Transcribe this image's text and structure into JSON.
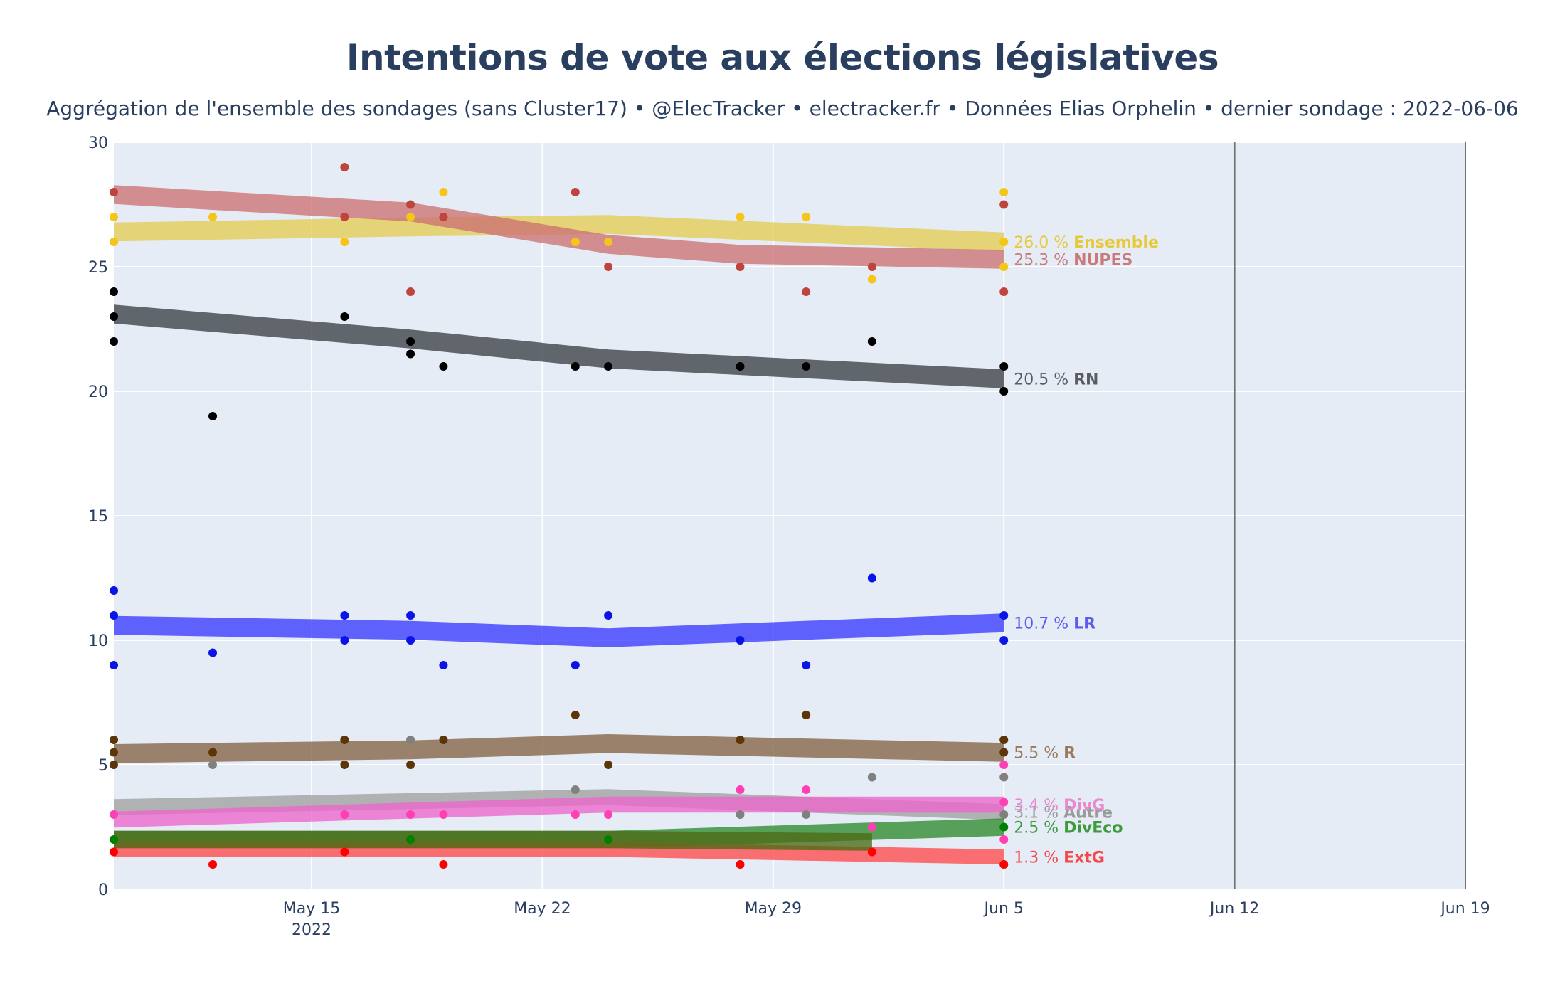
{
  "title": "Intentions de vote aux élections législatives",
  "subtitle": "Aggrégation de l'ensemble des sondages (sans Cluster17) • @ElecTracker • electracker.fr • Données Elias Orphelin • dernier sondage : 2022-06-06",
  "chart_data": {
    "type": "line",
    "x_axis": {
      "range": [
        "2022-05-10",
        "2022-06-20"
      ],
      "ticks": [
        {
          "date": "2022-05-16",
          "label": "May 15",
          "sublabel": "2022"
        },
        {
          "date": "2022-05-23",
          "label": "May 22"
        },
        {
          "date": "2022-05-30",
          "label": "May 29"
        },
        {
          "date": "2022-06-06",
          "label": "Jun 5"
        },
        {
          "date": "2022-06-13",
          "label": "Jun 12"
        },
        {
          "date": "2022-06-20",
          "label": "Jun 19"
        }
      ]
    },
    "y_axis": {
      "range": [
        0,
        30
      ],
      "ticks": [
        0,
        5,
        10,
        15,
        20,
        25,
        30
      ]
    },
    "grid": true,
    "vertical_markers": [
      "2022-06-13",
      "2022-06-20"
    ],
    "end_date": "2022-06-06",
    "series": [
      {
        "name": "Ensemble",
        "value_label": "26.0 %",
        "color": "#e8c93a",
        "band_color": "#e6cc55",
        "point_color": "#f5c518",
        "trend": [
          [
            "2022-05-10",
            26.4
          ],
          [
            "2022-05-19",
            26.6
          ],
          [
            "2022-05-25",
            26.7
          ],
          [
            "2022-06-06",
            26.0
          ]
        ],
        "half_width": 0.38,
        "points": [
          [
            "2022-05-10",
            27
          ],
          [
            "2022-05-10",
            26
          ],
          [
            "2022-05-13",
            27
          ],
          [
            "2022-05-17",
            26
          ],
          [
            "2022-05-19",
            27
          ],
          [
            "2022-05-20",
            28
          ],
          [
            "2022-05-24",
            26
          ],
          [
            "2022-05-25",
            26
          ],
          [
            "2022-05-29",
            27
          ],
          [
            "2022-05-31",
            27
          ],
          [
            "2022-06-02",
            24.5
          ],
          [
            "2022-06-06",
            28
          ],
          [
            "2022-06-06",
            26
          ],
          [
            "2022-06-06",
            25
          ]
        ]
      },
      {
        "name": "NUPES",
        "value_label": "25.3 %",
        "color": "#c97a7a",
        "band_color": "#cc7272",
        "point_color": "#c0443e",
        "trend": [
          [
            "2022-05-10",
            27.9
          ],
          [
            "2022-05-19",
            27.2
          ],
          [
            "2022-05-25",
            25.9
          ],
          [
            "2022-05-29",
            25.5
          ],
          [
            "2022-06-06",
            25.3
          ]
        ],
        "half_width": 0.38,
        "points": [
          [
            "2022-05-10",
            28
          ],
          [
            "2022-05-17",
            29
          ],
          [
            "2022-05-17",
            27
          ],
          [
            "2022-05-19",
            27.5
          ],
          [
            "2022-05-19",
            24
          ],
          [
            "2022-05-20",
            27
          ],
          [
            "2022-05-24",
            28
          ],
          [
            "2022-05-25",
            25
          ],
          [
            "2022-05-29",
            25
          ],
          [
            "2022-05-31",
            24
          ],
          [
            "2022-06-02",
            25
          ],
          [
            "2022-06-06",
            27.5
          ],
          [
            "2022-06-06",
            24
          ]
        ]
      },
      {
        "name": "RN",
        "value_label": "20.5 %",
        "color": "#5a5c62",
        "band_color": "#3c3f45",
        "point_color": "#000000",
        "trend": [
          [
            "2022-05-10",
            23.1
          ],
          [
            "2022-05-19",
            22.1
          ],
          [
            "2022-05-25",
            21.3
          ],
          [
            "2022-06-06",
            20.5
          ]
        ],
        "half_width": 0.38,
        "points": [
          [
            "2022-05-10",
            24
          ],
          [
            "2022-05-10",
            23
          ],
          [
            "2022-05-10",
            22
          ],
          [
            "2022-05-13",
            19
          ],
          [
            "2022-05-17",
            23
          ],
          [
            "2022-05-19",
            22
          ],
          [
            "2022-05-19",
            21.5
          ],
          [
            "2022-05-20",
            21
          ],
          [
            "2022-05-24",
            21
          ],
          [
            "2022-05-25",
            21
          ],
          [
            "2022-05-29",
            21
          ],
          [
            "2022-05-31",
            21
          ],
          [
            "2022-06-02",
            22
          ],
          [
            "2022-06-06",
            21
          ],
          [
            "2022-06-06",
            20
          ]
        ]
      },
      {
        "name": "LR",
        "value_label": "10.7 %",
        "color": "#5b5bf2",
        "band_color": "#3a3aff",
        "point_color": "#0a14e6",
        "trend": [
          [
            "2022-05-10",
            10.6
          ],
          [
            "2022-05-19",
            10.4
          ],
          [
            "2022-05-25",
            10.1
          ],
          [
            "2022-06-06",
            10.7
          ]
        ],
        "half_width": 0.38,
        "points": [
          [
            "2022-05-10",
            12
          ],
          [
            "2022-05-10",
            11
          ],
          [
            "2022-05-10",
            9
          ],
          [
            "2022-05-13",
            9.5
          ],
          [
            "2022-05-17",
            11
          ],
          [
            "2022-05-17",
            10
          ],
          [
            "2022-05-19",
            11
          ],
          [
            "2022-05-19",
            10
          ],
          [
            "2022-05-20",
            9
          ],
          [
            "2022-05-24",
            9
          ],
          [
            "2022-05-25",
            11
          ],
          [
            "2022-05-29",
            10
          ],
          [
            "2022-05-31",
            9
          ],
          [
            "2022-06-02",
            12.5
          ],
          [
            "2022-06-06",
            11
          ],
          [
            "2022-06-06",
            10
          ]
        ]
      },
      {
        "name": "R",
        "value_label": "5.5 %",
        "color": "#9a7a5a",
        "band_color": "#856344",
        "point_color": "#5c3508",
        "trend": [
          [
            "2022-05-10",
            5.45
          ],
          [
            "2022-05-19",
            5.6
          ],
          [
            "2022-05-25",
            5.85
          ],
          [
            "2022-06-06",
            5.5
          ]
        ],
        "half_width": 0.38,
        "points": [
          [
            "2022-05-10",
            6
          ],
          [
            "2022-05-10",
            5.5
          ],
          [
            "2022-05-10",
            5
          ],
          [
            "2022-05-13",
            5.5
          ],
          [
            "2022-05-17",
            6
          ],
          [
            "2022-05-17",
            5
          ],
          [
            "2022-05-19",
            5
          ],
          [
            "2022-05-20",
            6
          ],
          [
            "2022-05-24",
            7
          ],
          [
            "2022-05-25",
            5
          ],
          [
            "2022-05-29",
            6
          ],
          [
            "2022-05-31",
            7
          ],
          [
            "2022-06-06",
            6
          ],
          [
            "2022-06-06",
            5.5
          ]
        ]
      },
      {
        "name": "Autre",
        "value_label": "3.1 %",
        "color": "#9a9a9a",
        "band_color": "#a0a0a0",
        "point_color": "#808080",
        "trend": [
          [
            "2022-05-10",
            3.3
          ],
          [
            "2022-05-25",
            3.7
          ],
          [
            "2022-06-06",
            3.1
          ]
        ],
        "half_width": 0.32,
        "points": [
          [
            "2022-05-13",
            5
          ],
          [
            "2022-05-17",
            3
          ],
          [
            "2022-05-19",
            6
          ],
          [
            "2022-05-24",
            4
          ],
          [
            "2022-05-29",
            3
          ],
          [
            "2022-05-31",
            3
          ],
          [
            "2022-06-02",
            4.5
          ],
          [
            "2022-06-06",
            4.5
          ],
          [
            "2022-06-06",
            3
          ],
          [
            "2022-06-06",
            1
          ]
        ]
      },
      {
        "name": "DivG",
        "value_label": "3.4 %",
        "color": "#e88ad0",
        "band_color": "#ee66cc",
        "point_color": "#ff3fb4",
        "trend": [
          [
            "2022-05-10",
            2.8
          ],
          [
            "2022-05-25",
            3.4
          ],
          [
            "2022-06-06",
            3.4
          ]
        ],
        "half_width": 0.32,
        "points": [
          [
            "2022-05-10",
            3
          ],
          [
            "2022-05-17",
            3
          ],
          [
            "2022-05-19",
            3
          ],
          [
            "2022-05-20",
            3
          ],
          [
            "2022-05-24",
            3
          ],
          [
            "2022-05-25",
            3
          ],
          [
            "2022-05-29",
            4
          ],
          [
            "2022-05-31",
            4
          ],
          [
            "2022-06-02",
            2.5
          ],
          [
            "2022-06-06",
            5
          ],
          [
            "2022-06-06",
            3.5
          ],
          [
            "2022-06-06",
            2
          ]
        ]
      },
      {
        "name": "DivEco",
        "value_label": "2.5 %",
        "color": "#3d9a3d",
        "band_color": "#2e8a2e",
        "point_color": "#008000",
        "trend": [
          [
            "2022-05-10",
            2.0
          ],
          [
            "2022-05-25",
            2.0
          ],
          [
            "2022-06-06",
            2.5
          ]
        ],
        "half_width": 0.35,
        "points": [
          [
            "2022-05-10",
            2
          ],
          [
            "2022-05-19",
            2
          ],
          [
            "2022-05-25",
            2
          ],
          [
            "2022-06-06",
            2.5
          ]
        ]
      },
      {
        "name": "ExtG",
        "value_label": "1.3 %",
        "color": "#f24a4a",
        "band_color": "#ff4a4a",
        "point_color": "#ff0000",
        "trend": [
          [
            "2022-05-10",
            1.6
          ],
          [
            "2022-05-25",
            1.6
          ],
          [
            "2022-06-06",
            1.3
          ]
        ],
        "half_width": 0.3,
        "points": [
          [
            "2022-05-10",
            1.5
          ],
          [
            "2022-05-13",
            1
          ],
          [
            "2022-05-17",
            1.5
          ],
          [
            "2022-05-20",
            1
          ],
          [
            "2022-05-29",
            1
          ],
          [
            "2022-06-02",
            1.5
          ],
          [
            "2022-06-06",
            1
          ]
        ]
      },
      {
        "name": "",
        "value_label": "",
        "color": "#4b6a14",
        "band_color": "#4b6a14",
        "point_color": "#3b5a0a",
        "trend": [
          [
            "2022-05-10",
            2.0
          ],
          [
            "2022-05-25",
            2.0
          ],
          [
            "2022-06-02",
            1.9
          ]
        ],
        "half_width": 0.35,
        "points": []
      }
    ]
  }
}
